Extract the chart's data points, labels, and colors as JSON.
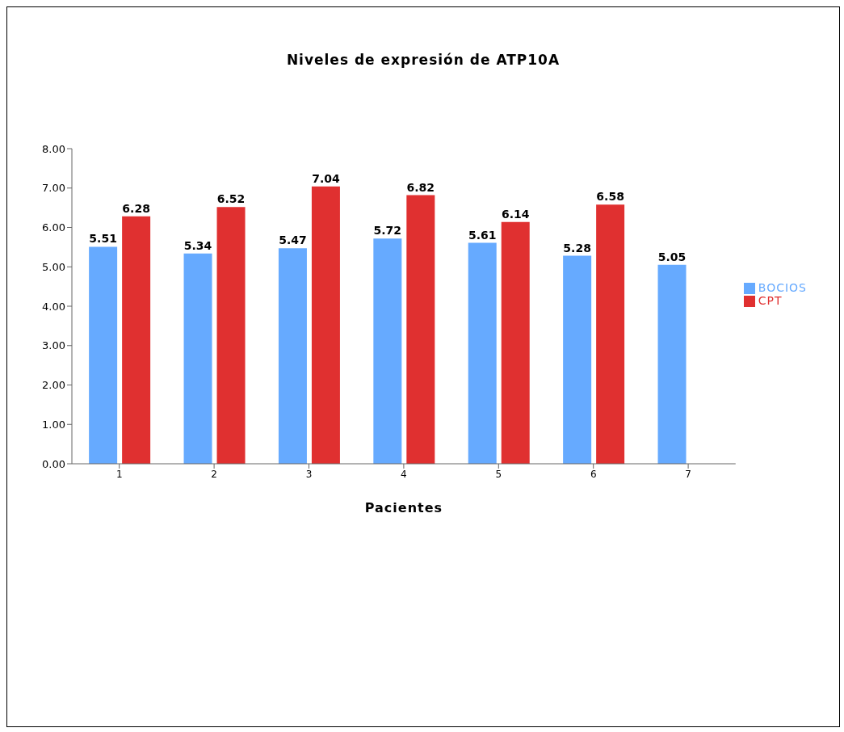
{
  "chart_data": {
    "type": "bar",
    "title": "Niveles de expresión de ATP10A",
    "xlabel": "Pacientes",
    "categories": [
      "1",
      "2",
      "3",
      "4",
      "5",
      "6",
      "7"
    ],
    "series": [
      {
        "name": "BOCIOS",
        "color": "#66aaff",
        "values": [
          5.51,
          5.34,
          5.47,
          5.72,
          5.61,
          5.28,
          5.05
        ]
      },
      {
        "name": "CPT",
        "color": "#e03030",
        "values": [
          6.28,
          6.52,
          7.04,
          6.82,
          6.14,
          6.58,
          null
        ]
      }
    ],
    "ylim": [
      0,
      8
    ],
    "yticks": [
      {
        "value": 0,
        "label": "0.00"
      },
      {
        "value": 1,
        "label": "1.00"
      },
      {
        "value": 2,
        "label": "2.00"
      },
      {
        "value": 3,
        "label": "3.00"
      },
      {
        "value": 4,
        "label": "4.00"
      },
      {
        "value": 5,
        "label": "5.00"
      },
      {
        "value": 6,
        "label": "6.00"
      },
      {
        "value": 7,
        "label": "7.00"
      },
      {
        "value": 8,
        "label": "8.00"
      }
    ],
    "legend": "right",
    "data_labels": true
  }
}
